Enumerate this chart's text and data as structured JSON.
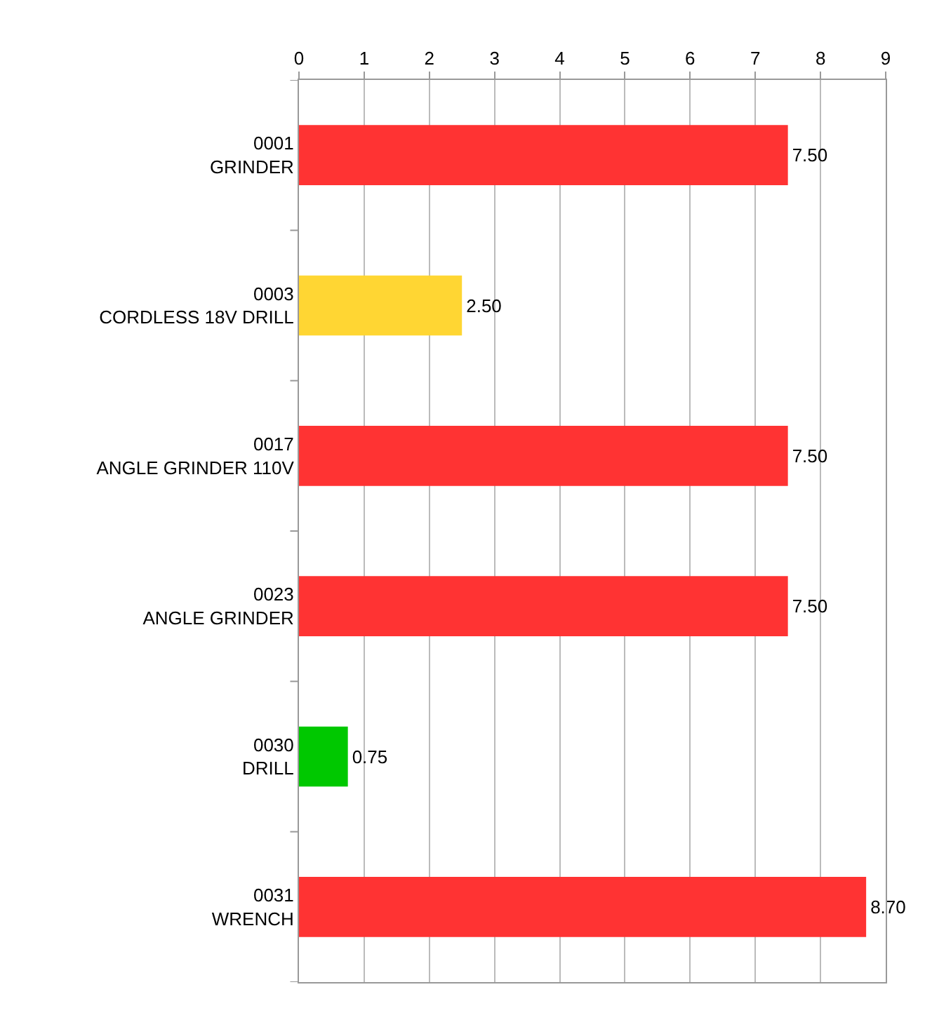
{
  "chart_data": {
    "type": "bar",
    "orientation": "horizontal",
    "categories": [
      "0001\nGRINDER",
      "0003\nCORDLESS 18V DRILL",
      "0017\nANGLE GRINDER 110V",
      "0023\nANGLE GRINDER",
      "0030\nDRILL",
      "0031\nWRENCH"
    ],
    "values": [
      7.5,
      2.5,
      7.5,
      7.5,
      0.75,
      8.7
    ],
    "colors": [
      "#ff3333",
      "#ffd633",
      "#ff3333",
      "#ff3333",
      "#00c800",
      "#ff3333"
    ],
    "value_labels": [
      "7.50",
      "2.50",
      "7.50",
      "7.50",
      "0.75",
      "8.70"
    ],
    "xlim": [
      0,
      9
    ],
    "xticks": [
      0,
      1,
      2,
      3,
      4,
      5,
      6,
      7,
      8,
      9
    ],
    "grid": "x"
  }
}
